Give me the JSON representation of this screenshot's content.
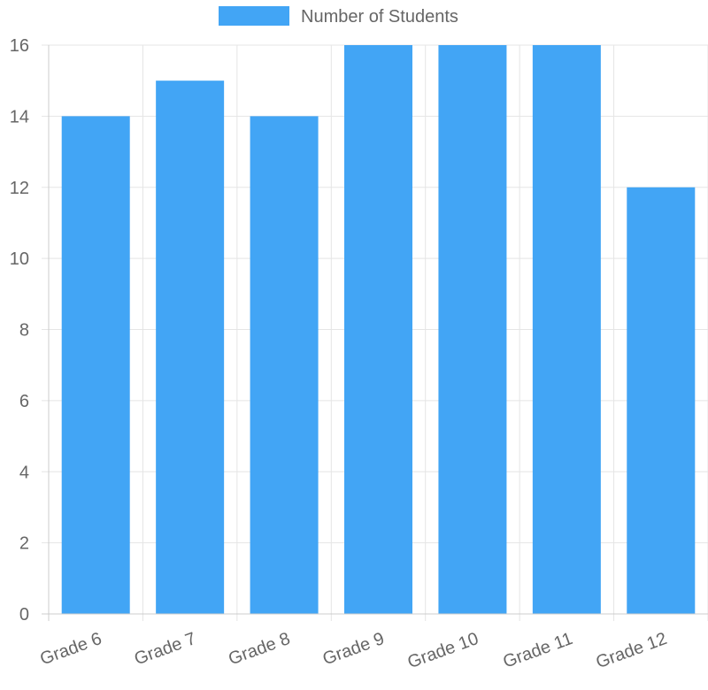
{
  "colors": {
    "bar_fill": "#42a5f5",
    "grid": "#e5e5e5",
    "axis": "#cccccc",
    "text": "#666666"
  },
  "chart_data": {
    "type": "bar",
    "categories": [
      "Grade 6",
      "Grade 7",
      "Grade 8",
      "Grade 9",
      "Grade 10",
      "Grade 11",
      "Grade 12"
    ],
    "series": [
      {
        "name": "Number of Students",
        "values": [
          14,
          15,
          14,
          16,
          16,
          16,
          12
        ]
      }
    ],
    "ylim": [
      0,
      16
    ],
    "yticks": [
      0,
      2,
      4,
      6,
      8,
      10,
      12,
      14,
      16
    ],
    "grid": true,
    "legend": "top-center"
  }
}
